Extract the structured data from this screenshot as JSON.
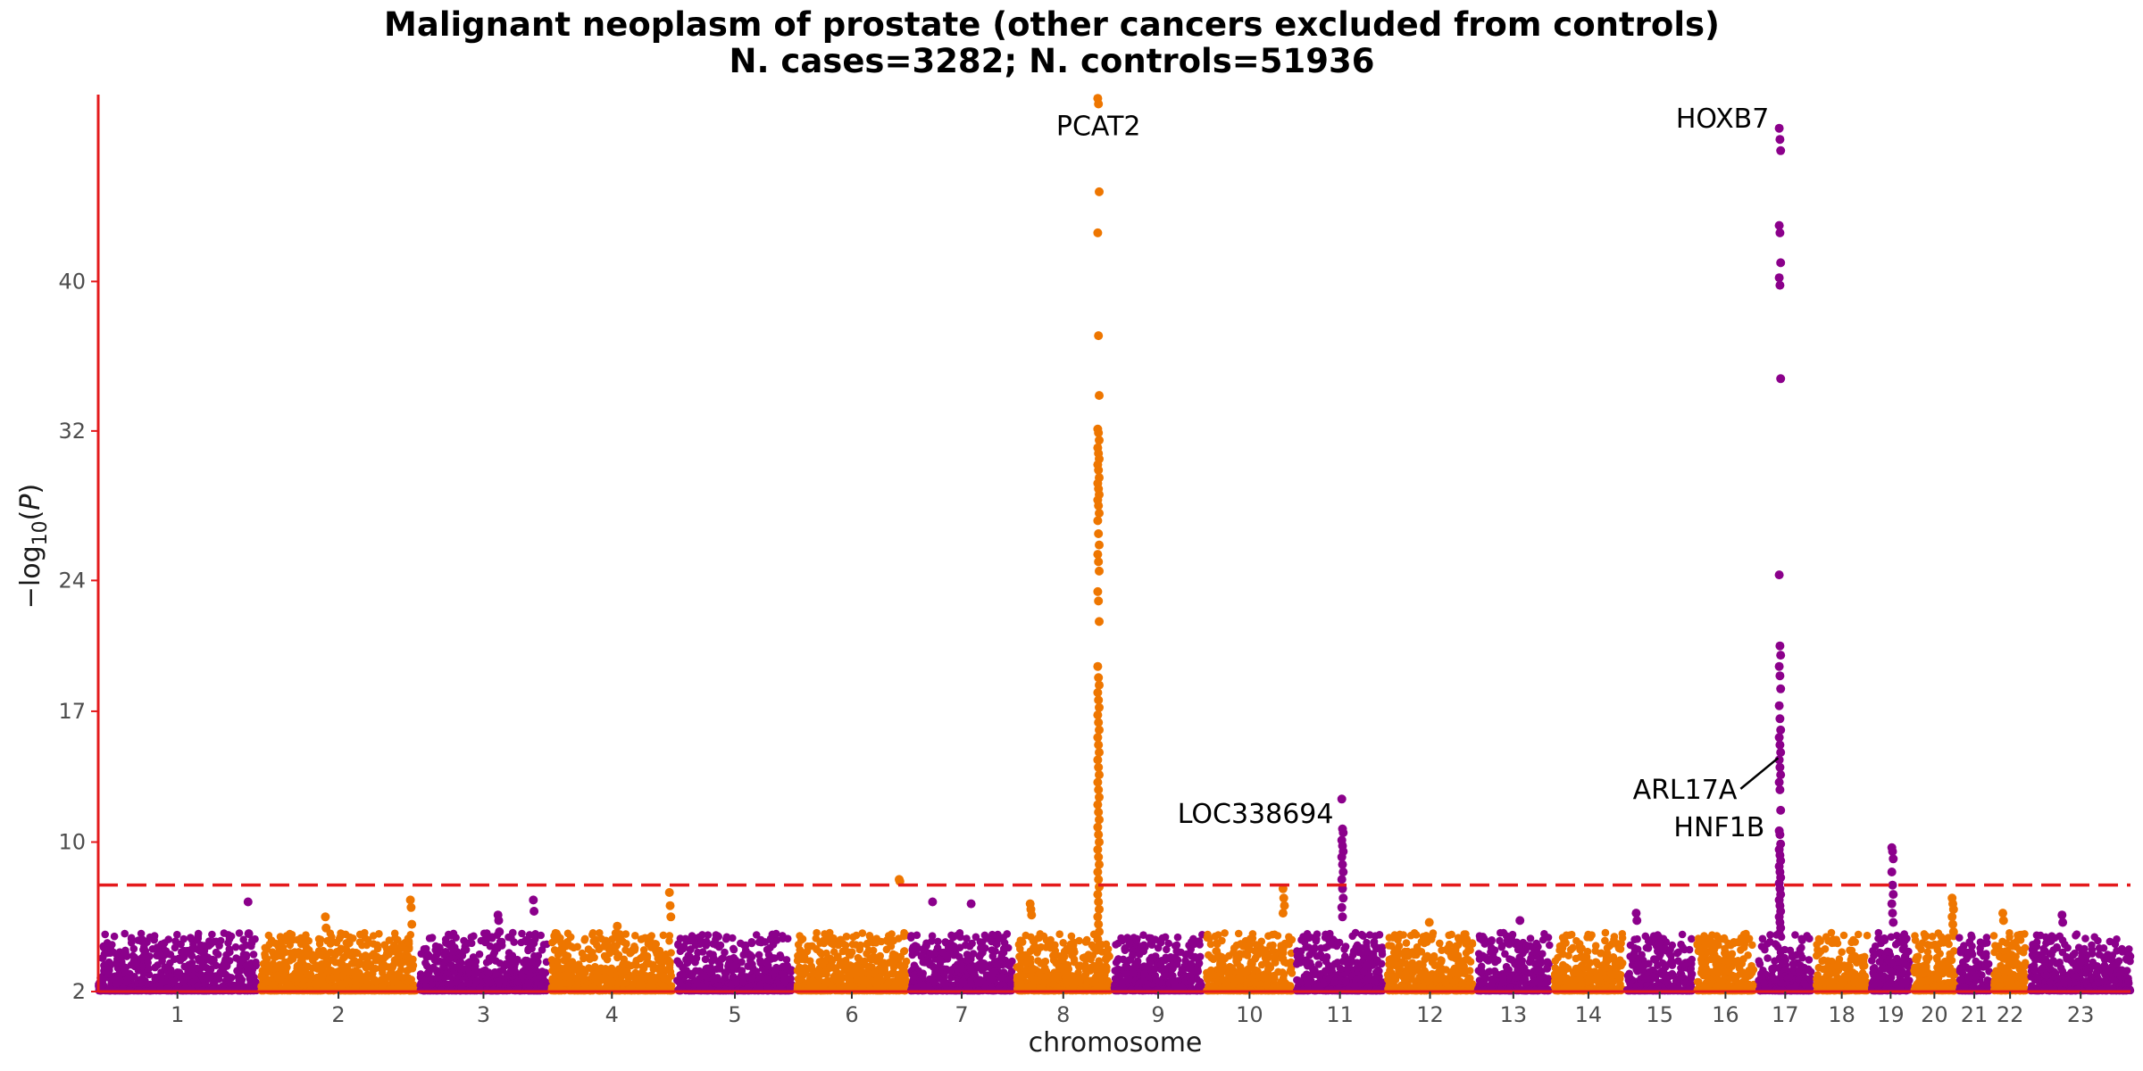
{
  "chart_data": {
    "type": "scatter",
    "title": "Malignant neoplasm of prostate (other cancers excluded from controls)",
    "subtitle": "N. cases=3282; N. controls=51936",
    "xlabel": "chromosome",
    "ylabel": "−log10(P)",
    "ylim": [
      2,
      50
    ],
    "y_ticks": [
      2,
      10,
      17,
      24,
      32,
      40
    ],
    "significance_line": 7.7,
    "grid": false,
    "colors": {
      "odd": "#8B008B",
      "even": "#EE7600",
      "axis": "#E41A1C",
      "threshold": "#E41A1C"
    },
    "chromosomes": [
      {
        "label": "1",
        "size": 248
      },
      {
        "label": "2",
        "size": 242
      },
      {
        "label": "3",
        "size": 198
      },
      {
        "label": "4",
        "size": 190
      },
      {
        "label": "5",
        "size": 181
      },
      {
        "label": "6",
        "size": 171
      },
      {
        "label": "7",
        "size": 159
      },
      {
        "label": "8",
        "size": 145
      },
      {
        "label": "9",
        "size": 138
      },
      {
        "label": "10",
        "size": 134
      },
      {
        "label": "11",
        "size": 135
      },
      {
        "label": "12",
        "size": 133
      },
      {
        "label": "13",
        "size": 114
      },
      {
        "label": "14",
        "size": 107
      },
      {
        "label": "15",
        "size": 102
      },
      {
        "label": "16",
        "size": 90
      },
      {
        "label": "17",
        "size": 83
      },
      {
        "label": "18",
        "size": 80
      },
      {
        "label": "19",
        "size": 59
      },
      {
        "label": "20",
        "size": 64
      },
      {
        "label": "21",
        "size": 47
      },
      {
        "label": "22",
        "size": 51
      },
      {
        "label": "23",
        "size": 156
      }
    ],
    "peaks": [
      {
        "chrom": "1",
        "pos": 0.95,
        "values": [
          6.8,
          5.1
        ]
      },
      {
        "chrom": "2",
        "pos": 0.42,
        "values": [
          6.0,
          5.4
        ]
      },
      {
        "chrom": "2",
        "pos": 0.97,
        "values": [
          6.9,
          6.5,
          5.6
        ]
      },
      {
        "chrom": "3",
        "pos": 0.62,
        "values": [
          6.1,
          5.8,
          5.2
        ]
      },
      {
        "chrom": "3",
        "pos": 0.9,
        "values": [
          6.9,
          6.3
        ]
      },
      {
        "chrom": "4",
        "pos": 0.55,
        "values": [
          5.5
        ]
      },
      {
        "chrom": "4",
        "pos": 0.98,
        "values": [
          7.3,
          6.6,
          6.0
        ]
      },
      {
        "chrom": "6",
        "pos": 0.94,
        "values": [
          8.0,
          7.9
        ]
      },
      {
        "chrom": "7",
        "pos": 0.22,
        "values": [
          6.8
        ]
      },
      {
        "chrom": "7",
        "pos": 0.6,
        "values": [
          6.7
        ]
      },
      {
        "chrom": "8",
        "pos": 0.15,
        "values": [
          6.7,
          6.4,
          6.1
        ]
      },
      {
        "chrom": "8",
        "pos": 0.88,
        "values": [
          49.8,
          49.5,
          44.8,
          42.6,
          37.1,
          33.9,
          32.1,
          31.9,
          31.5,
          31.1,
          30.8,
          30.5,
          30.2,
          29.9,
          29.5,
          29.2,
          28.9,
          28.6,
          28.3,
          28.0,
          27.6,
          27.2,
          26.5,
          25.9,
          25.4,
          25.0,
          24.5,
          23.4,
          22.9,
          21.8,
          19.4,
          18.8,
          18.4,
          18.0,
          17.6,
          17.2,
          16.8,
          16.4,
          16.0,
          15.6,
          15.2,
          14.8,
          14.4,
          14.0,
          13.6,
          13.2,
          12.8,
          12.4,
          12.0,
          11.6,
          11.2,
          10.8,
          10.4,
          10.0,
          9.6,
          9.2,
          8.8,
          8.4,
          8.0,
          7.6,
          7.2,
          6.8,
          6.4,
          6.0,
          5.6,
          5.2,
          4.8
        ]
      },
      {
        "chrom": "10",
        "pos": 0.9,
        "values": [
          7.5,
          7.0,
          6.6,
          6.2
        ]
      },
      {
        "chrom": "11",
        "pos": 0.53,
        "values": [
          12.3,
          10.7,
          10.5,
          10.1,
          9.8,
          9.5,
          9.2,
          8.8,
          8.4,
          8.0,
          7.5,
          7.0,
          6.5,
          6.0
        ]
      },
      {
        "chrom": "12",
        "pos": 0.5,
        "values": [
          5.7
        ]
      },
      {
        "chrom": "13",
        "pos": 0.6,
        "values": [
          5.8
        ]
      },
      {
        "chrom": "15",
        "pos": 0.15,
        "values": [
          6.2,
          5.8
        ]
      },
      {
        "chrom": "17",
        "pos": 0.4,
        "values": [
          48.2,
          47.6,
          47.0,
          43.0,
          42.6,
          41.0,
          40.2,
          39.8,
          34.8,
          24.3,
          20.5,
          20.0,
          19.4,
          18.9,
          18.2,
          17.3,
          16.6,
          16.0,
          15.6,
          15.2,
          14.8,
          14.4,
          14.0,
          13.6,
          13.2,
          12.8,
          11.7,
          10.6,
          10.4,
          9.9,
          9.6,
          9.3,
          9.0,
          8.7,
          8.4,
          8.1,
          7.8,
          7.5,
          7.2,
          6.9,
          6.6,
          6.3,
          6.0,
          5.7,
          5.4,
          5.1
        ]
      },
      {
        "chrom": "19",
        "pos": 0.55,
        "values": [
          9.7,
          9.5,
          9.1,
          8.4,
          7.7,
          7.2,
          6.7,
          6.2,
          5.7
        ]
      },
      {
        "chrom": "20",
        "pos": 0.95,
        "values": [
          7.0,
          6.7,
          6.4,
          6.0,
          5.6,
          5.2
        ]
      },
      {
        "chrom": "22",
        "pos": 0.3,
        "values": [
          6.2,
          5.8
        ]
      },
      {
        "chrom": "23",
        "pos": 0.32,
        "values": [
          6.1,
          5.7
        ]
      }
    ],
    "annotations": [
      {
        "text": "PCAT2",
        "chrom": "8",
        "y": 48.3
      },
      {
        "text": "HOXB7",
        "chrom": "17",
        "y": 48.7
      },
      {
        "text": "LOC338694",
        "chrom": "11",
        "y": 11.5
      },
      {
        "text": "ARL17A",
        "chrom": "17",
        "y": 12.8
      },
      {
        "text": "HNF1B",
        "chrom": "17",
        "y": 10.8
      }
    ]
  }
}
